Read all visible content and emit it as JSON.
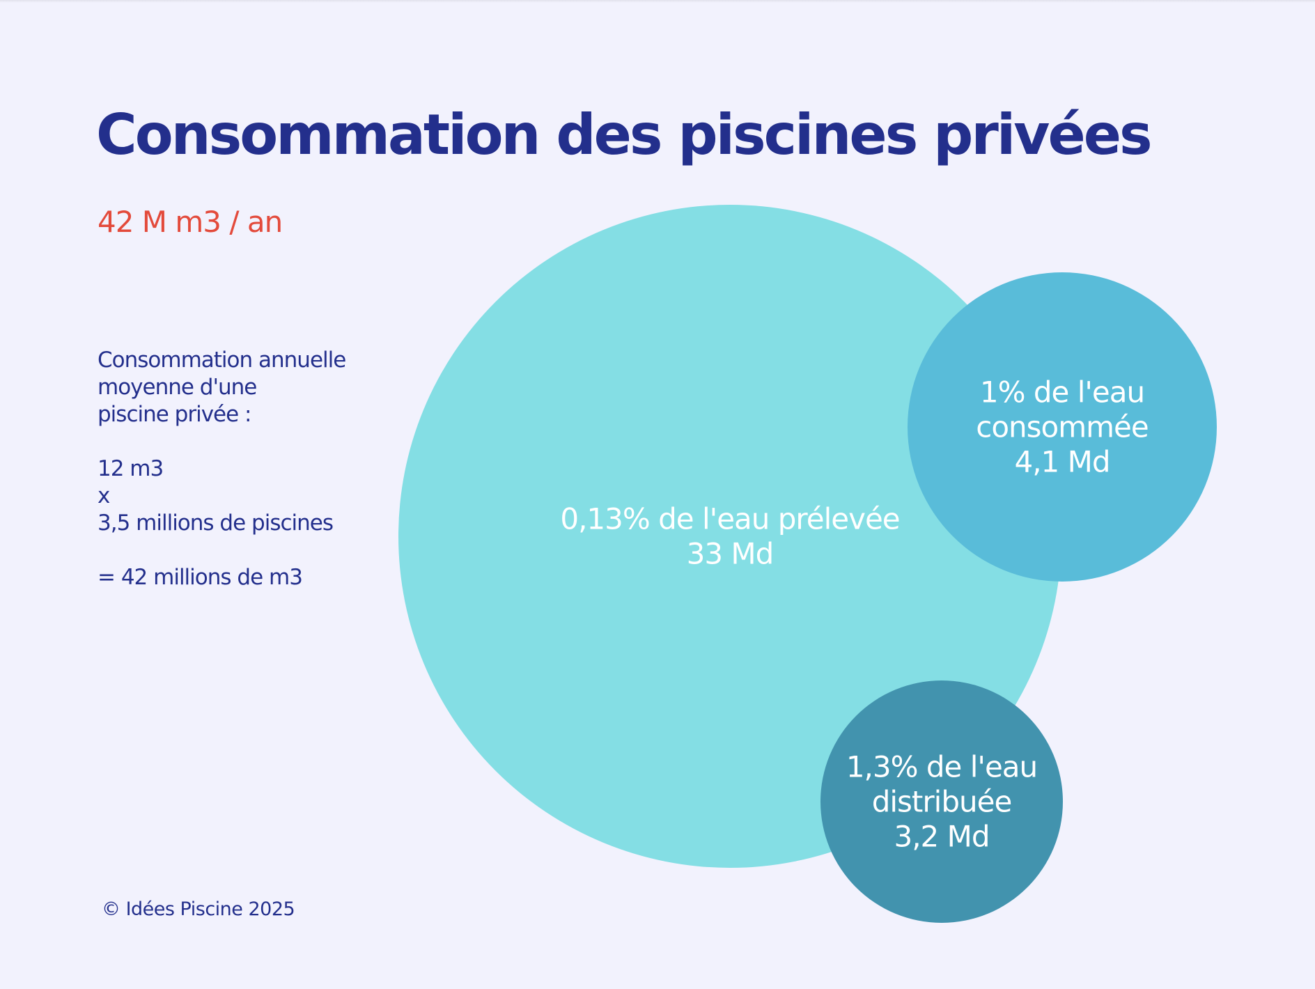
{
  "title": "Consommation des piscines privées",
  "subtitle": "42 M m3 / an",
  "description": {
    "lines": [
      "Consommation annuelle",
      "moyenne d'une",
      "piscine privée :"
    ],
    "volume": "12 m3",
    "operator": "x",
    "count": "3,5 millions de piscines",
    "result": "= 42 millions de m3"
  },
  "copyright": "© Idées Piscine 2025",
  "colors": {
    "background": "#f2f2fd",
    "title": "#232f8c",
    "accent": "#e34a3b",
    "bubble_large": "#84dee4",
    "bubble_consumed": "#59bcd9",
    "bubble_distributed": "#4293ae"
  },
  "chart_data": {
    "type": "bubble",
    "title": "Consommation des piscines privées",
    "subtitle": "42 M m3 / an",
    "bubbles": [
      {
        "label": "0,13% de l'eau prélevée",
        "value_label": "33 Md",
        "percent": 0.13,
        "total_m3_billions": 33,
        "color": "#84dee4"
      },
      {
        "label": "1% de l'eau consommée",
        "value_label": "4,1 Md",
        "percent": 1,
        "total_m3_billions": 4.1,
        "color": "#59bcd9"
      },
      {
        "label": "1,3% de l'eau distribuée",
        "value_label": "3,2 Md",
        "percent": 1.3,
        "total_m3_billions": 3.2,
        "color": "#4293ae"
      }
    ]
  }
}
